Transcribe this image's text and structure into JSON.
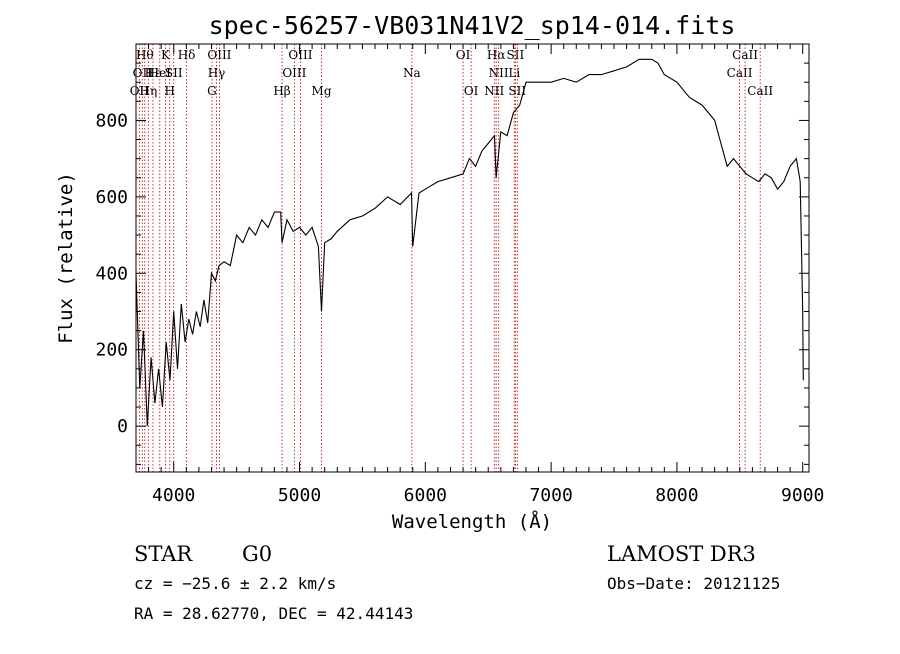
{
  "chart_data": {
    "type": "line",
    "title": "spec-56257-VB031N41V2_sp14-014.fits",
    "xlabel": "Wavelength (Å)",
    "ylabel": "Flux (relative)",
    "xlim": [
      3700,
      9050
    ],
    "ylim": [
      -120,
      1000
    ],
    "xticks": [
      4000,
      5000,
      6000,
      7000,
      8000,
      9000
    ],
    "yticks": [
      0,
      200,
      400,
      600,
      800
    ],
    "series": [
      {
        "name": "flux",
        "x": [
          3700,
          3730,
          3760,
          3790,
          3820,
          3850,
          3880,
          3910,
          3940,
          3970,
          4000,
          4030,
          4060,
          4090,
          4120,
          4150,
          4180,
          4210,
          4240,
          4270,
          4300,
          4330,
          4360,
          4400,
          4450,
          4500,
          4550,
          4600,
          4650,
          4700,
          4750,
          4800,
          4850,
          4861,
          4900,
          4950,
          5000,
          5050,
          5100,
          5150,
          5175,
          5200,
          5250,
          5300,
          5400,
          5500,
          5600,
          5700,
          5800,
          5890,
          5900,
          5950,
          6000,
          6100,
          6200,
          6300,
          6350,
          6400,
          6450,
          6500,
          6550,
          6563,
          6600,
          6650,
          6700,
          6750,
          6800,
          6900,
          7000,
          7100,
          7200,
          7300,
          7400,
          7500,
          7600,
          7700,
          7800,
          7850,
          7900,
          8000,
          8100,
          8200,
          8300,
          8350,
          8400,
          8450,
          8500,
          8550,
          8600,
          8650,
          8700,
          8750,
          8800,
          8850,
          8900,
          8950,
          8980,
          9000,
          9005
        ],
        "y": [
          400,
          100,
          250,
          0,
          180,
          60,
          150,
          50,
          220,
          120,
          300,
          150,
          320,
          220,
          280,
          240,
          300,
          260,
          330,
          270,
          400,
          380,
          420,
          430,
          420,
          500,
          480,
          520,
          500,
          540,
          520,
          560,
          560,
          480,
          540,
          510,
          520,
          500,
          520,
          470,
          300,
          480,
          490,
          510,
          540,
          550,
          570,
          600,
          580,
          610,
          470,
          610,
          620,
          640,
          650,
          660,
          700,
          680,
          720,
          740,
          760,
          650,
          770,
          760,
          820,
          840,
          900,
          900,
          900,
          910,
          900,
          920,
          920,
          930,
          940,
          960,
          960,
          950,
          920,
          900,
          860,
          840,
          800,
          740,
          680,
          700,
          680,
          660,
          650,
          640,
          660,
          650,
          620,
          640,
          680,
          700,
          640,
          300,
          120
        ]
      }
    ],
    "lines": [
      {
        "wave": 3727,
        "label": "OII",
        "row": 2
      },
      {
        "wave": 3750,
        "label": "OII",
        "row": 1
      },
      {
        "wave": 3770,
        "label": "Hθ",
        "row": 0
      },
      {
        "wave": 3798,
        "label": "Hη",
        "row": 2
      },
      {
        "wave": 3835,
        "label": "Hε",
        "row": 1
      },
      {
        "wave": 3889,
        "label": "HeI",
        "row": 1
      },
      {
        "wave": 3934,
        "label": "K",
        "row": 0
      },
      {
        "wave": 3968,
        "label": "H",
        "row": 2
      },
      {
        "wave": 4000,
        "label": "SII",
        "row": 1
      },
      {
        "wave": 4102,
        "label": "Hδ",
        "row": 0
      },
      {
        "wave": 4304,
        "label": "G",
        "row": 2
      },
      {
        "wave": 4340,
        "label": "Hγ",
        "row": 1
      },
      {
        "wave": 4363,
        "label": "OIII",
        "row": 0
      },
      {
        "wave": 4861,
        "label": "Hβ",
        "row": 2
      },
      {
        "wave": 4959,
        "label": "OIII",
        "row": 1
      },
      {
        "wave": 5007,
        "label": "OIII",
        "row": 0
      },
      {
        "wave": 5175,
        "label": "Mg",
        "row": 2
      },
      {
        "wave": 5893,
        "label": "Na",
        "row": 1
      },
      {
        "wave": 6300,
        "label": "OI",
        "row": 0
      },
      {
        "wave": 6364,
        "label": "OI",
        "row": 2
      },
      {
        "wave": 6548,
        "label": "NII",
        "row": 2
      },
      {
        "wave": 6563,
        "label": "Hα",
        "row": 0
      },
      {
        "wave": 6583,
        "label": "NII",
        "row": 1
      },
      {
        "wave": 6707,
        "label": "Li",
        "row": 1
      },
      {
        "wave": 6716,
        "label": "SII",
        "row": 0
      },
      {
        "wave": 6731,
        "label": "SII",
        "row": 2
      },
      {
        "wave": 8498,
        "label": "CaII",
        "row": 1
      },
      {
        "wave": 8542,
        "label": "CaII",
        "row": 0
      },
      {
        "wave": 8662,
        "label": "CaII",
        "row": 2
      }
    ]
  },
  "info": {
    "class": "STAR",
    "subclass": "G0",
    "survey": "LAMOST DR3",
    "cz": "cz = −25.6 ± 2.2 km/s",
    "obs_date": "Obs−Date: 20121125",
    "radec": "RA =  28.62770, DEC =  42.44143"
  }
}
